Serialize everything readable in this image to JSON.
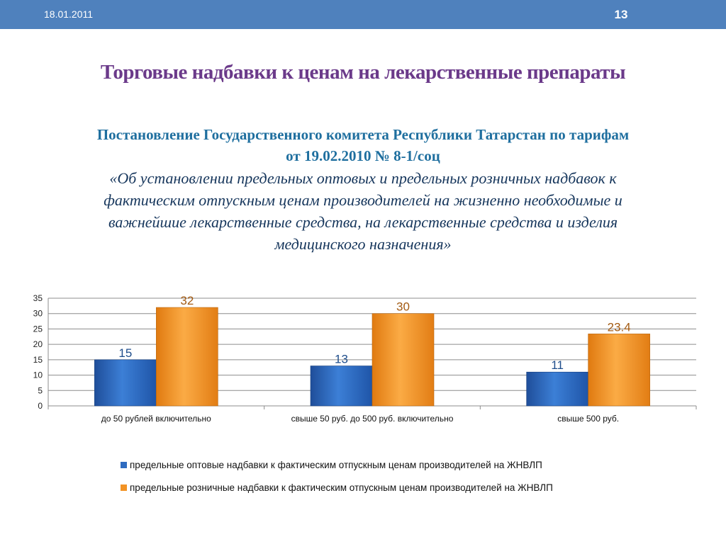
{
  "header": {
    "date": "18.01.2011",
    "page_number": "13"
  },
  "title": "Торговые надбавки к ценам на лекарственные препараты",
  "subtitle": {
    "line1": "Постановление Государственного комитета Республики Татарстан по тарифам",
    "line2": "от 19.02.2010 № 8-1/соц"
  },
  "quote": {
    "line1": "«Об установлении  предельных оптовых и предельных розничных надбавок к",
    "line2": "фактическим отпускным ценам производителей на жизненно  необходимые и",
    "line3": "важнейшие лекарственные средства, на лекарственные средства и изделия",
    "line4": "медицинского назначения»"
  },
  "colors": {
    "header_bar": "#4f81bd",
    "title": "#6b3a8a",
    "subtitle": "#1f6f9f",
    "quote": "#16365c",
    "series_wholesale": "#2f6cc0",
    "series_retail": "#f29325",
    "retail_label": "#a35a12",
    "wholesale_label": "#1f4e8c"
  },
  "chart_data": {
    "type": "bar",
    "title": "",
    "xlabel": "",
    "ylabel": "",
    "ylim": [
      0,
      35
    ],
    "yticks": [
      0,
      5,
      10,
      15,
      20,
      25,
      30,
      35
    ],
    "grid": true,
    "legend_position": "bottom",
    "categories": [
      "до 50 рублей включительно",
      "свыше 50 руб. до 500 руб. включительно",
      "свыше 500 руб."
    ],
    "series": [
      {
        "name": "предельные оптовые надбавки к фактическим отпускным ценам производителей на ЖНВЛП",
        "values": [
          15,
          13,
          11
        ],
        "color": "#2f6cc0"
      },
      {
        "name": "предельные розничные надбавки к фактическим отпускным ценам производителей на ЖНВЛП",
        "values": [
          32,
          30,
          23.4
        ],
        "color": "#f29325"
      }
    ]
  }
}
